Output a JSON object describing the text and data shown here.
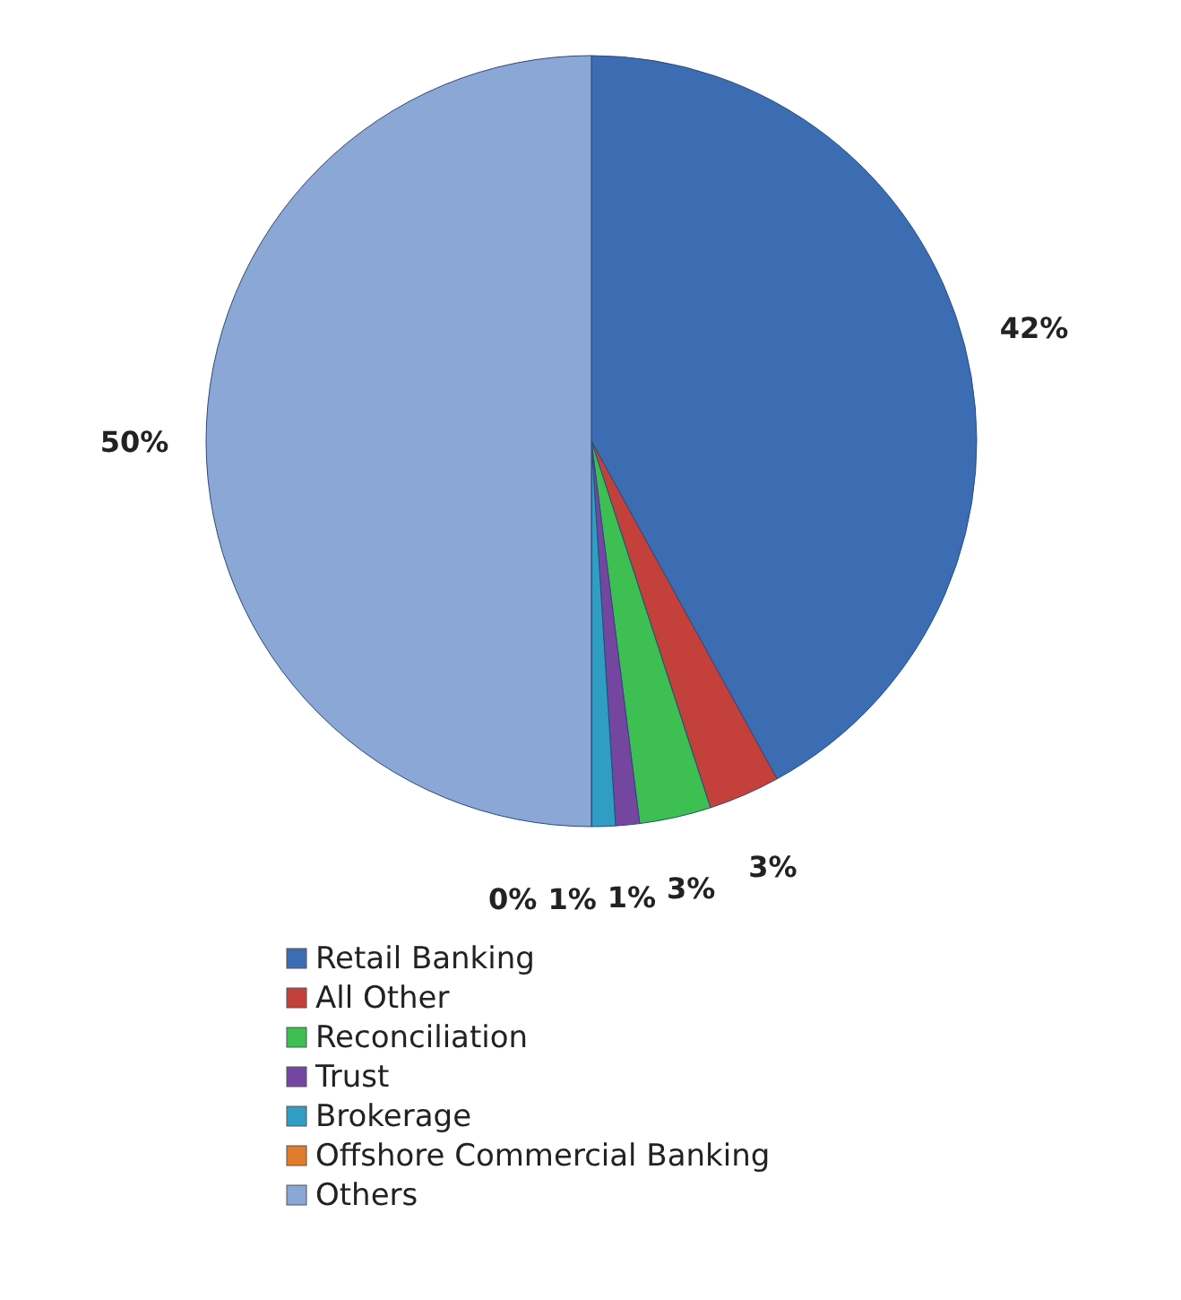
{
  "chart_data": {
    "type": "pie",
    "categories": [
      "Retail Banking",
      "All Other",
      "Reconciliation",
      "Trust",
      "Brokerage",
      "Offshore Commercial Banking",
      "Others"
    ],
    "values": [
      42,
      3,
      3,
      1,
      1,
      0,
      50
    ],
    "value_labels": [
      "42%",
      "3%",
      "3%",
      "1%",
      "1%",
      "0%",
      "50%"
    ],
    "colors": [
      "#3c6db3",
      "#c4403a",
      "#3dbf52",
      "#7446a0",
      "#2f9ec2",
      "#e07c2a",
      "#8aa7d5"
    ],
    "legend": "bottom"
  }
}
